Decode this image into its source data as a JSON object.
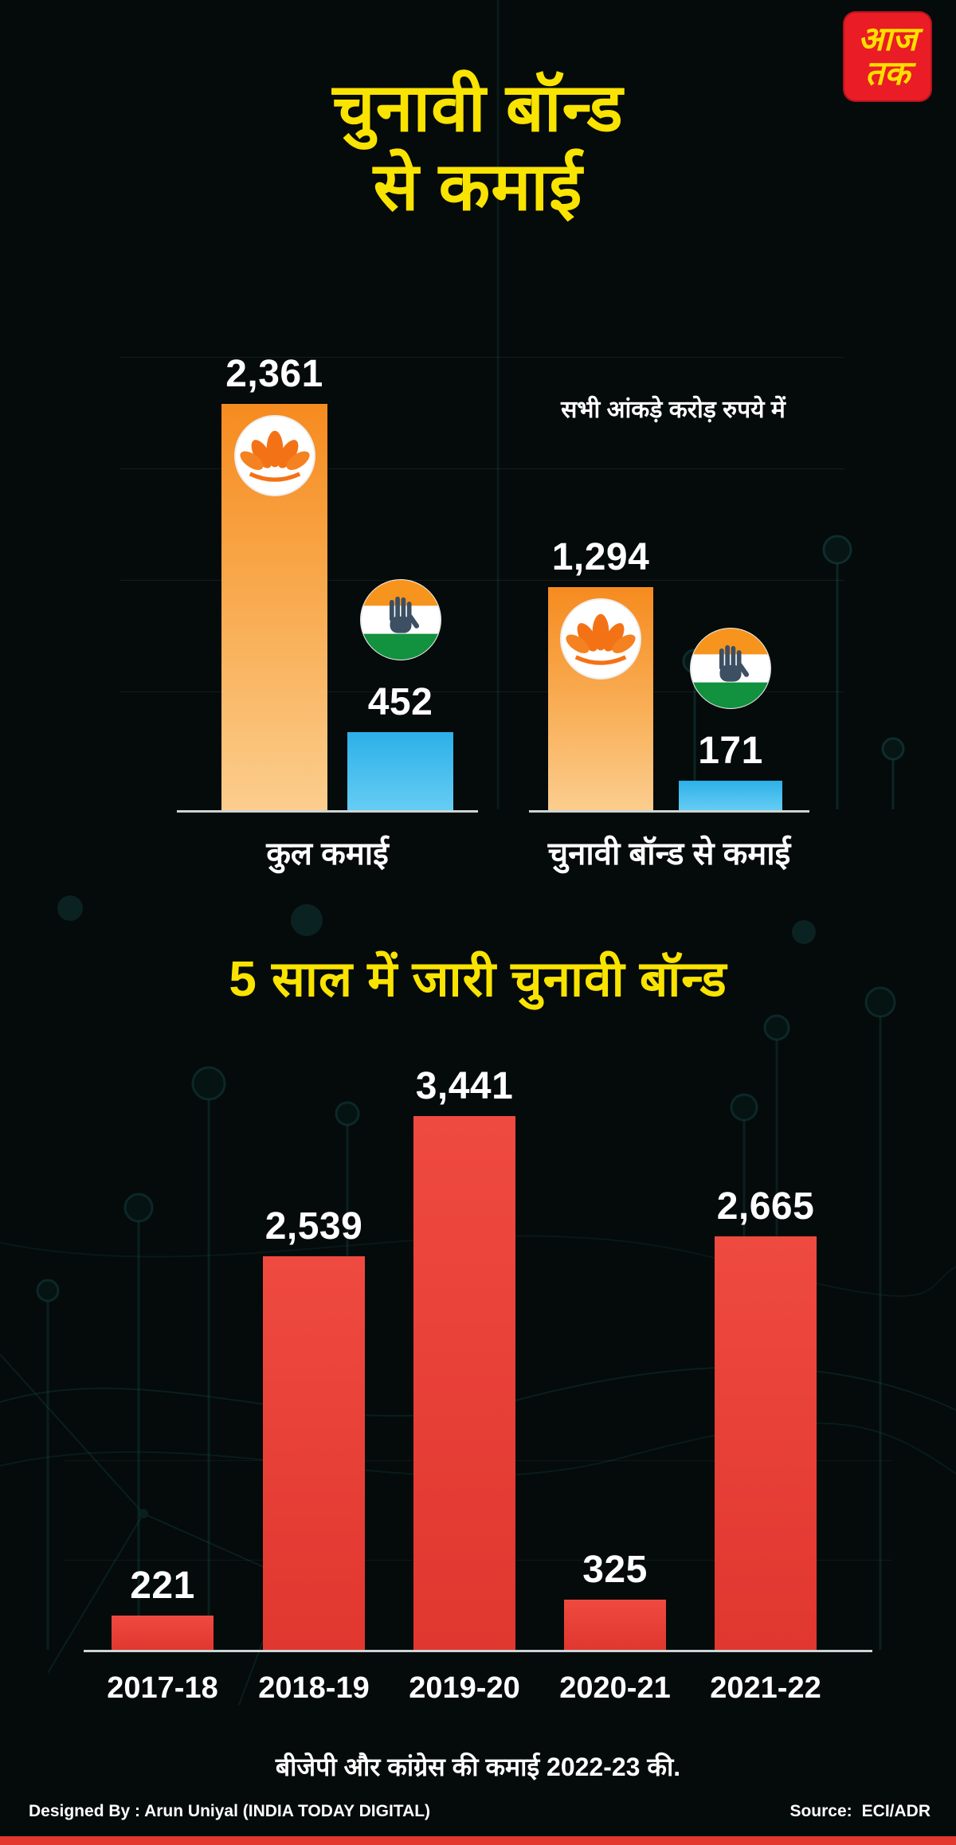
{
  "brand": {
    "line1": "आज",
    "line2": "तक"
  },
  "header": {
    "title_line1": "चुनावी बॉन्ड",
    "title_line2": "से कमाई"
  },
  "earnings": {
    "note": "सभी आंकड़े करोड़ रुपये में",
    "groups": [
      {
        "label": "कुल कमाई",
        "bjp_value": "2,361",
        "inc_value": "452"
      },
      {
        "label": "चुनावी बॉन्ड से कमाई",
        "bjp_value": "1,294",
        "inc_value": "171"
      }
    ]
  },
  "bonds": {
    "title": "5 साल में जारी चुनावी बॉन्ड",
    "value_labels": [
      "221",
      "2,539",
      "3,441",
      "325",
      "2,665"
    ],
    "categories": [
      "2017-18",
      "2018-19",
      "2019-20",
      "2020-21",
      "2021-22"
    ]
  },
  "caption": "बीजेपी और कांग्रेस की कमाई 2022-23 की.",
  "footer": {
    "designed_by": "Designed By : Arun Uniyal (INDIA TODAY DIGITAL)",
    "source_label": "Source:",
    "source_value": "ECI/ADR"
  },
  "colors": {
    "accent_yellow": "#f9e300",
    "bjp_orange": "#f68b1f",
    "congress_blue": "#2cb0e8",
    "bond_red": "#e8443a",
    "brand_red": "#ea1c25",
    "background": "#050a0a"
  },
  "chart_data": [
    {
      "type": "bar",
      "title": "चुनावी बॉन्ड से कमाई",
      "categories": [
        "कुल कमाई",
        "चुनावी बॉन्ड से कमाई"
      ],
      "series": [
        {
          "name": "BJP",
          "values": [
            2361,
            1294
          ]
        },
        {
          "name": "Congress",
          "values": [
            452,
            171
          ]
        }
      ],
      "units": "करोड़ रुपये",
      "note": "सभी आंकड़े करोड़ रुपये में",
      "legend_position": "on-bar-logos",
      "grid": true
    },
    {
      "type": "bar",
      "title": "5 साल में जारी चुनावी बॉन्ड",
      "categories": [
        "2017-18",
        "2018-19",
        "2019-20",
        "2020-21",
        "2021-22"
      ],
      "values": [
        221,
        2539,
        3441,
        325,
        2665
      ],
      "units": "करोड़ रुपये",
      "ylim": [
        0,
        3500
      ],
      "grid": false
    }
  ]
}
